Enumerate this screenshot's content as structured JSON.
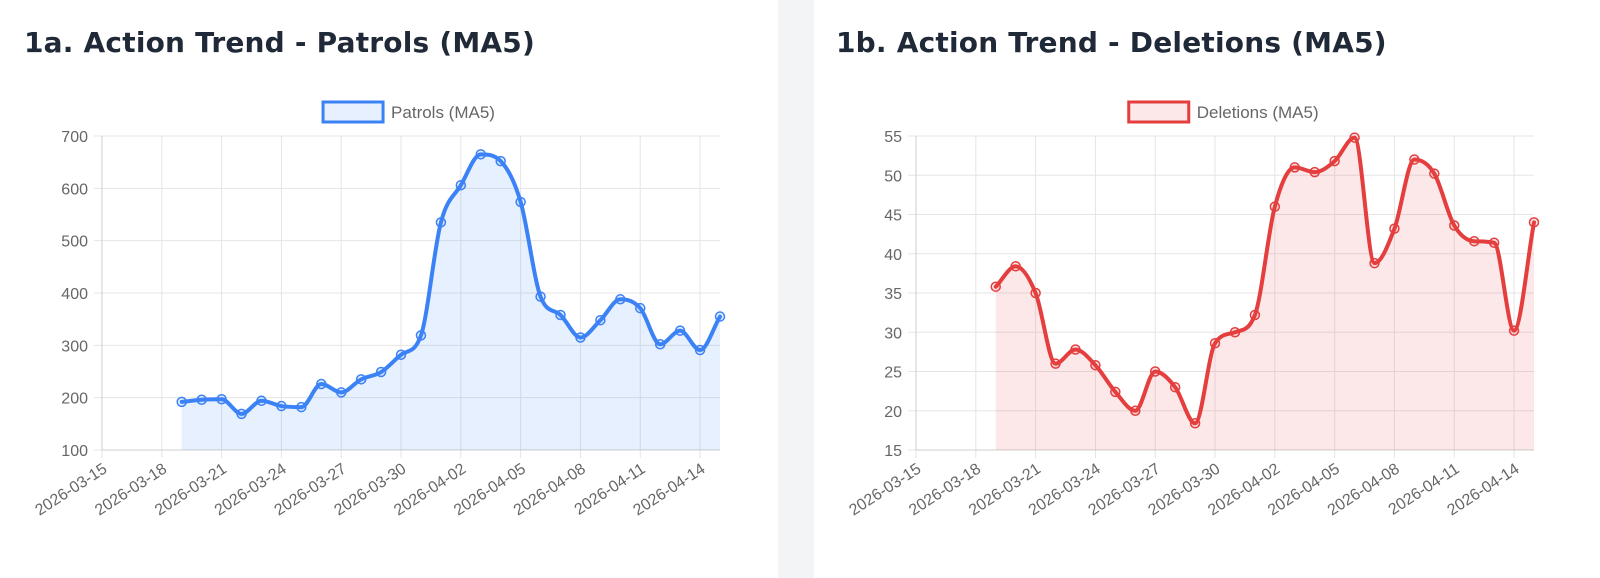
{
  "charts": [
    {
      "title": "1a. Action Trend - Patrols (MA5)",
      "color": "#3b82f6",
      "fill": "rgba(59,130,246,0.12)",
      "chart_data": {
        "type": "line",
        "title": "1a. Action Trend - Patrols (MA5)",
        "x_start": "2026-03-15",
        "x_end": "2026-04-15",
        "xticks": [
          "2026-03-15",
          "2026-03-18",
          "2026-03-21",
          "2026-03-24",
          "2026-03-27",
          "2026-03-30",
          "2026-04-02",
          "2026-04-05",
          "2026-04-08",
          "2026-04-11",
          "2026-04-14"
        ],
        "ylim": [
          100,
          700
        ],
        "yticks": [
          100,
          200,
          300,
          400,
          500,
          600,
          700
        ],
        "grid": true,
        "legend_position": "top",
        "series": [
          {
            "name": "Patrols (MA5)",
            "x": [
              "2026-03-19",
              "2026-03-20",
              "2026-03-21",
              "2026-03-22",
              "2026-03-23",
              "2026-03-24",
              "2026-03-25",
              "2026-03-26",
              "2026-03-27",
              "2026-03-28",
              "2026-03-29",
              "2026-03-30",
              "2026-03-31",
              "2026-04-01",
              "2026-04-02",
              "2026-04-03",
              "2026-04-04",
              "2026-04-05",
              "2026-04-06",
              "2026-04-07",
              "2026-04-08",
              "2026-04-09",
              "2026-04-10",
              "2026-04-11",
              "2026-04-12",
              "2026-04-13",
              "2026-04-14",
              "2026-04-15"
            ],
            "values": [
              192,
              196,
              197,
              169,
              194,
              184,
              182,
              226,
              210,
              235,
              249,
              282,
              319,
              535,
              606,
              665,
              652,
              574,
              393,
              358,
              315,
              348,
              388,
              371,
              302,
              328,
              291,
              355
            ]
          }
        ]
      }
    },
    {
      "title": "1b. Action Trend - Deletions (MA5)",
      "color": "#e53e3e",
      "fill": "rgba(229,62,62,0.12)",
      "chart_data": {
        "type": "line",
        "title": "1b. Action Trend - Deletions (MA5)",
        "x_start": "2026-03-15",
        "x_end": "2026-04-15",
        "xticks": [
          "2026-03-15",
          "2026-03-18",
          "2026-03-21",
          "2026-03-24",
          "2026-03-27",
          "2026-03-30",
          "2026-04-02",
          "2026-04-05",
          "2026-04-08",
          "2026-04-11",
          "2026-04-14"
        ],
        "ylim": [
          15,
          55
        ],
        "yticks": [
          15,
          20,
          25,
          30,
          35,
          40,
          45,
          50,
          55
        ],
        "grid": true,
        "legend_position": "top",
        "series": [
          {
            "name": "Deletions (MA5)",
            "x": [
              "2026-03-19",
              "2026-03-20",
              "2026-03-21",
              "2026-03-22",
              "2026-03-23",
              "2026-03-24",
              "2026-03-25",
              "2026-03-26",
              "2026-03-27",
              "2026-03-28",
              "2026-03-29",
              "2026-03-30",
              "2026-03-31",
              "2026-04-01",
              "2026-04-02",
              "2026-04-03",
              "2026-04-04",
              "2026-04-05",
              "2026-04-06",
              "2026-04-07",
              "2026-04-08",
              "2026-04-09",
              "2026-04-10",
              "2026-04-11",
              "2026-04-12",
              "2026-04-13",
              "2026-04-14",
              "2026-04-15"
            ],
            "values": [
              35.8,
              38.4,
              35.0,
              26.0,
              27.8,
              25.8,
              22.4,
              20.0,
              25.0,
              23.0,
              18.4,
              28.6,
              30.0,
              32.2,
              46.0,
              51.0,
              50.4,
              51.8,
              54.8,
              38.8,
              43.2,
              52.0,
              50.2,
              43.6,
              41.6,
              41.4,
              30.2,
              44.0
            ]
          }
        ]
      }
    }
  ]
}
